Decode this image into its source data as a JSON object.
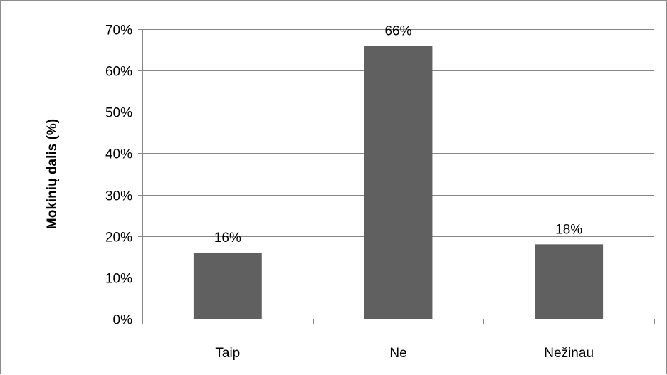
{
  "chart_data": {
    "type": "bar",
    "title": "",
    "xlabel": "",
    "ylabel": "Mokinių dalis (%)",
    "categories": [
      "Taip",
      "Ne",
      "Nežinau"
    ],
    "values": [
      16,
      66,
      18
    ],
    "data_labels": [
      "16%",
      "66%",
      "18%"
    ],
    "ylim": [
      0,
      70
    ],
    "y_ticks": [
      0,
      10,
      20,
      30,
      40,
      50,
      60,
      70
    ],
    "y_tick_labels": [
      "0%",
      "10%",
      "20%",
      "30%",
      "40%",
      "50%",
      "60%",
      "70%"
    ],
    "grid": true,
    "legend": false,
    "bar_color": "#606060",
    "grid_color": "#868686",
    "axis_color": "#868686"
  }
}
